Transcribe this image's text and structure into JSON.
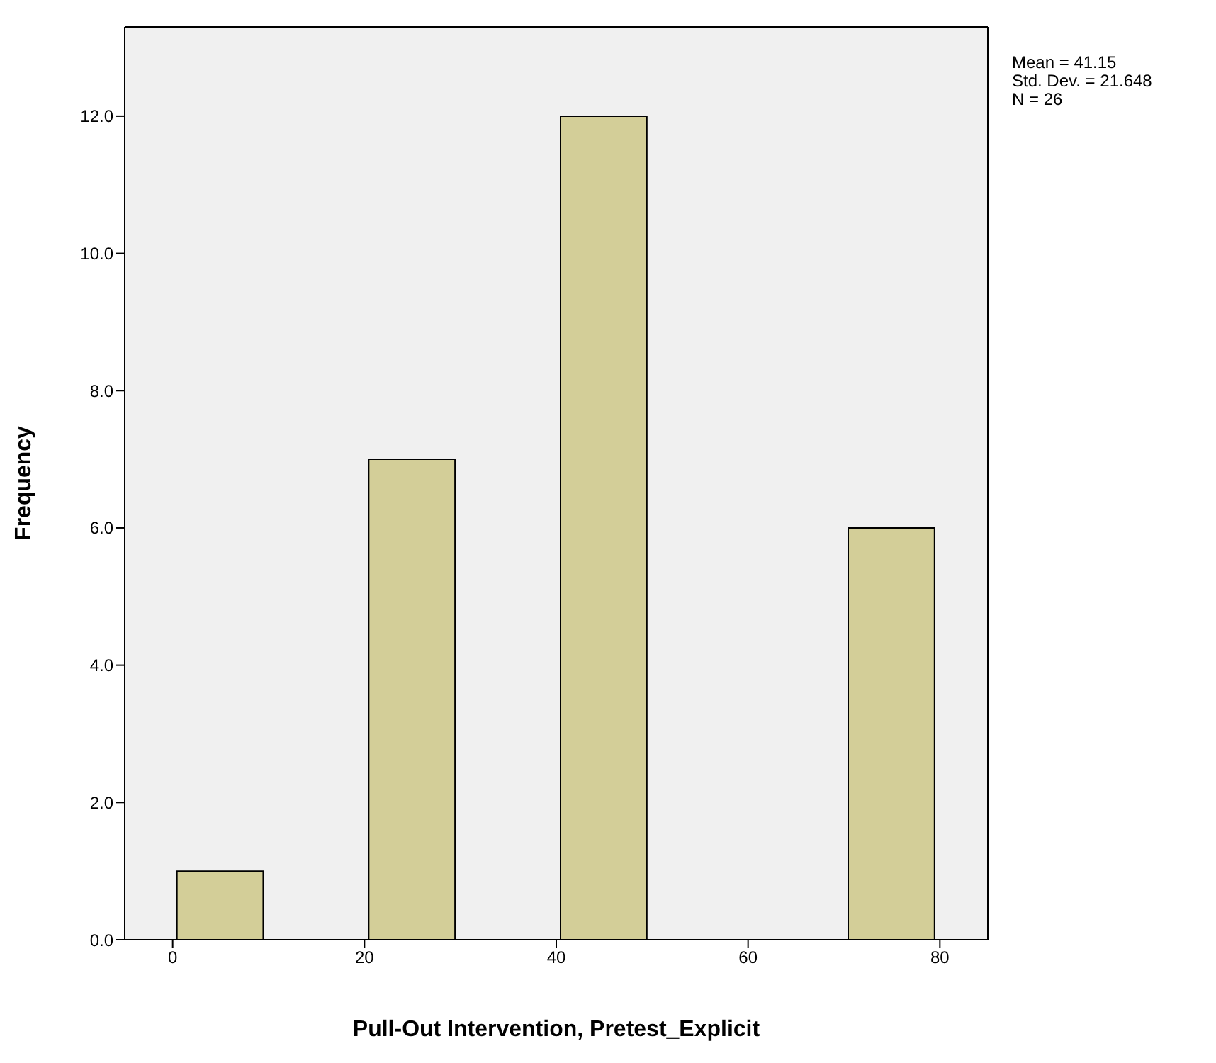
{
  "chart_data": {
    "type": "histogram",
    "xlabel": "Pull-Out Intervention, Pretest_Explicit",
    "ylabel": "Frequency",
    "bins": [
      0,
      10,
      20,
      30,
      40,
      50,
      60,
      70,
      80
    ],
    "values": [
      1,
      0,
      7,
      0,
      12,
      0,
      0,
      6
    ],
    "color": "#d3ce98",
    "xlim": [
      -5,
      85
    ],
    "xticks": [
      0,
      20,
      40,
      60,
      80
    ],
    "ylim": [
      0,
      13.3
    ],
    "yticks": [
      {
        "value": 0,
        "label": "0.0"
      },
      {
        "value": 2,
        "label": "2.0"
      },
      {
        "value": 4,
        "label": "4.0"
      },
      {
        "value": 6,
        "label": "6.0"
      },
      {
        "value": 8,
        "label": "8.0"
      },
      {
        "value": 10,
        "label": "10.0"
      },
      {
        "value": 12,
        "label": "12.0"
      }
    ],
    "grid": false,
    "annotations": [
      "Mean = 41.15",
      "Std. Dev. = 21.648",
      "N = 26"
    ]
  }
}
